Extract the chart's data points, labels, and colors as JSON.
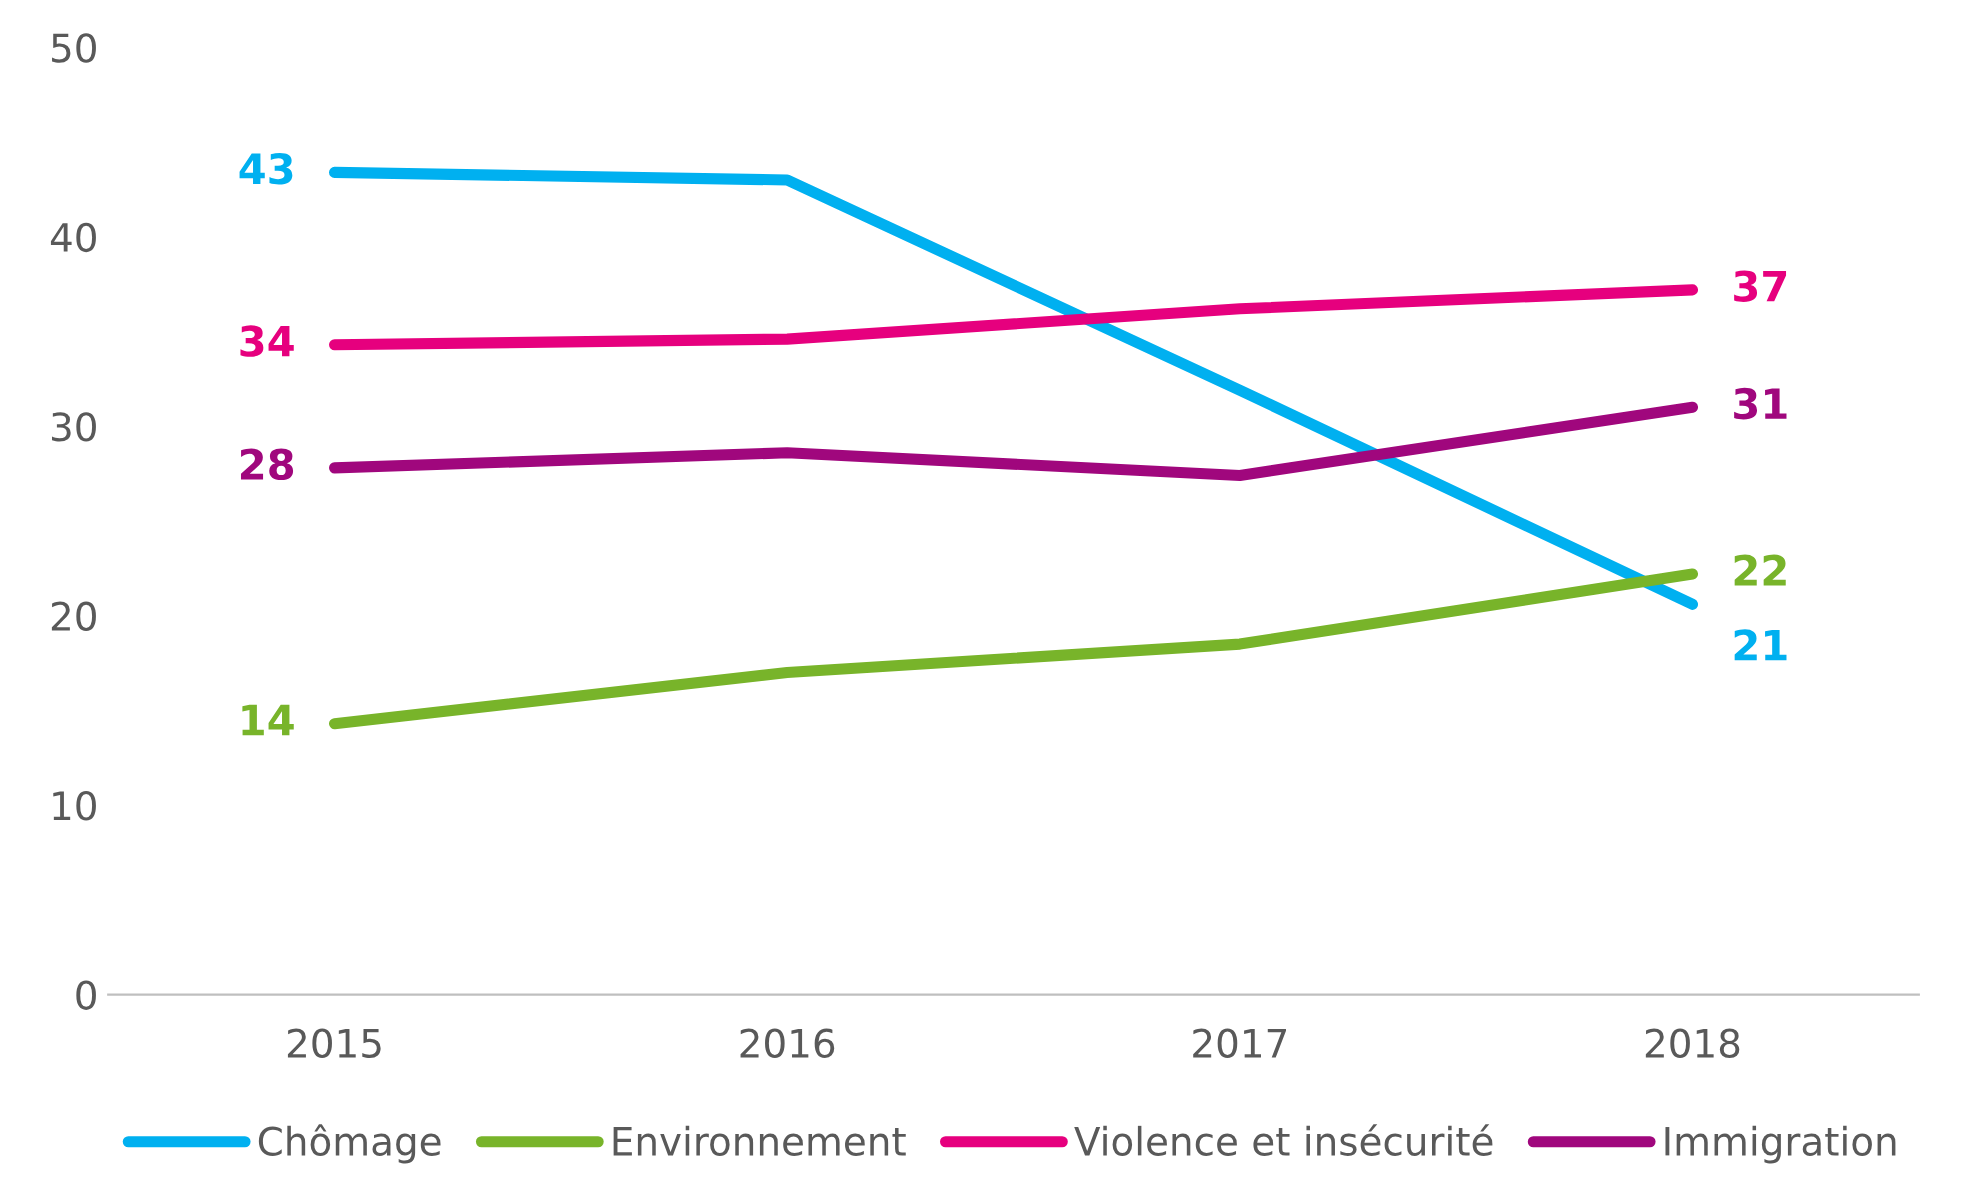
{
  "chart_data": {
    "type": "line",
    "categories": [
      "2015",
      "2016",
      "2017",
      "2018"
    ],
    "series": [
      {
        "name": "Chômage",
        "color": "#00b0f0",
        "values": [
          43.4,
          43.0,
          31.9,
          20.6
        ],
        "value_labels": [
          "43",
          null,
          null,
          "21"
        ]
      },
      {
        "name": "Environnement",
        "color": "#78b42a",
        "values": [
          14.3,
          17.0,
          18.5,
          22.2
        ],
        "value_labels": [
          "14",
          null,
          null,
          "22"
        ]
      },
      {
        "name": "Violence et insécurité",
        "color": "#e6007e",
        "values": [
          34.3,
          34.6,
          36.2,
          37.2
        ],
        "value_labels": [
          "34",
          null,
          null,
          "37"
        ]
      },
      {
        "name": "Immigration",
        "color": "#a0077d",
        "values": [
          27.8,
          28.6,
          27.4,
          31.0
        ],
        "value_labels": [
          "28",
          null,
          null,
          "31"
        ]
      }
    ],
    "ylim": [
      0,
      50
    ],
    "yticks": [
      0,
      10,
      20,
      30,
      40,
      50
    ],
    "grid": false,
    "legend": "bottom",
    "marker": "none",
    "line_style": "solid"
  }
}
